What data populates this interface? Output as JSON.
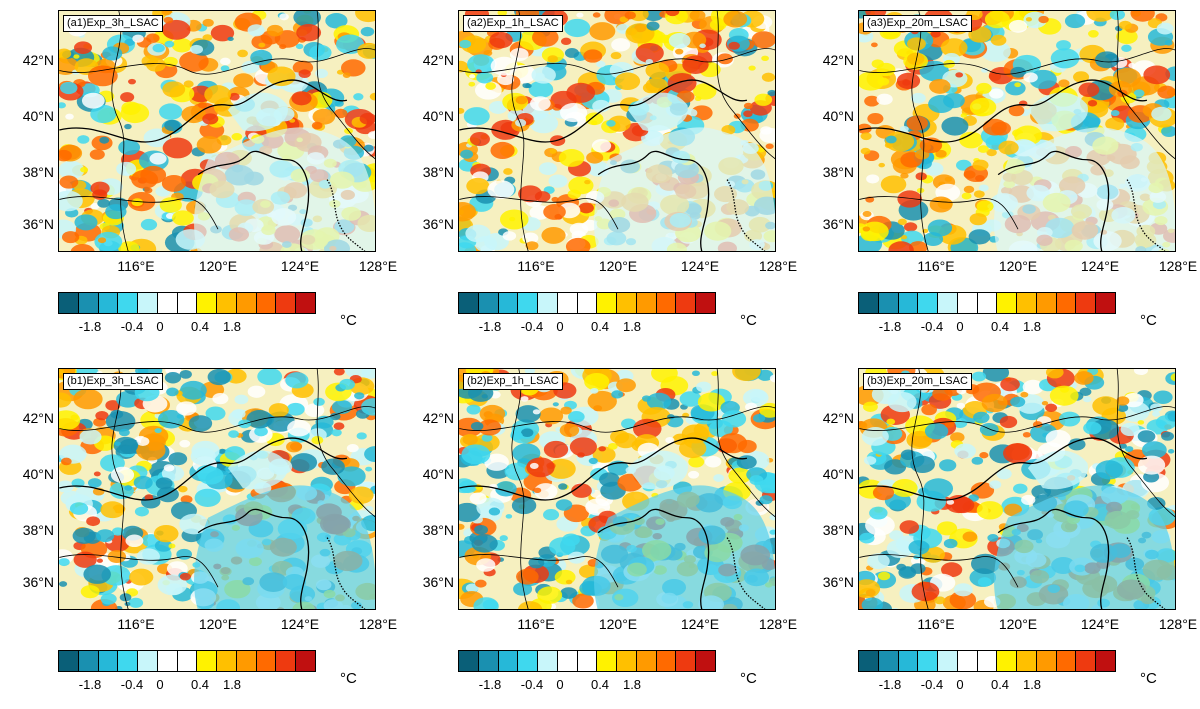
{
  "panels": [
    {
      "id": "a1",
      "label": "(a1)Exp_3h_LSAC"
    },
    {
      "id": "a2",
      "label": "(a2)Exp_1h_LSAC"
    },
    {
      "id": "a3",
      "label": "(a3)Exp_20m_LSAC"
    },
    {
      "id": "b1",
      "label": "(b1)Exp_3h_LSAC"
    },
    {
      "id": "b2",
      "label": "(b2)Exp_1h_LSAC"
    },
    {
      "id": "b3",
      "label": "(b3)Exp_20m_LSAC"
    }
  ],
  "lat_ticks": [
    "42°N",
    "40°N",
    "38°N",
    "36°N"
  ],
  "lon_ticks": [
    "116°E",
    "120°E",
    "124°E",
    "128°E"
  ],
  "colorbar": {
    "colors": [
      "#0a5f78",
      "#1a90b0",
      "#26b8d8",
      "#3fd8ee",
      "#c8f6fa",
      "#ffffff",
      "#ffffff",
      "#fff200",
      "#ffc000",
      "#ff9a00",
      "#ff6a00",
      "#ee3a10",
      "#c01010"
    ],
    "labels": [
      "-1.8",
      "-0.4",
      "0",
      "0.4",
      "1.8"
    ],
    "unit": "°C"
  }
}
